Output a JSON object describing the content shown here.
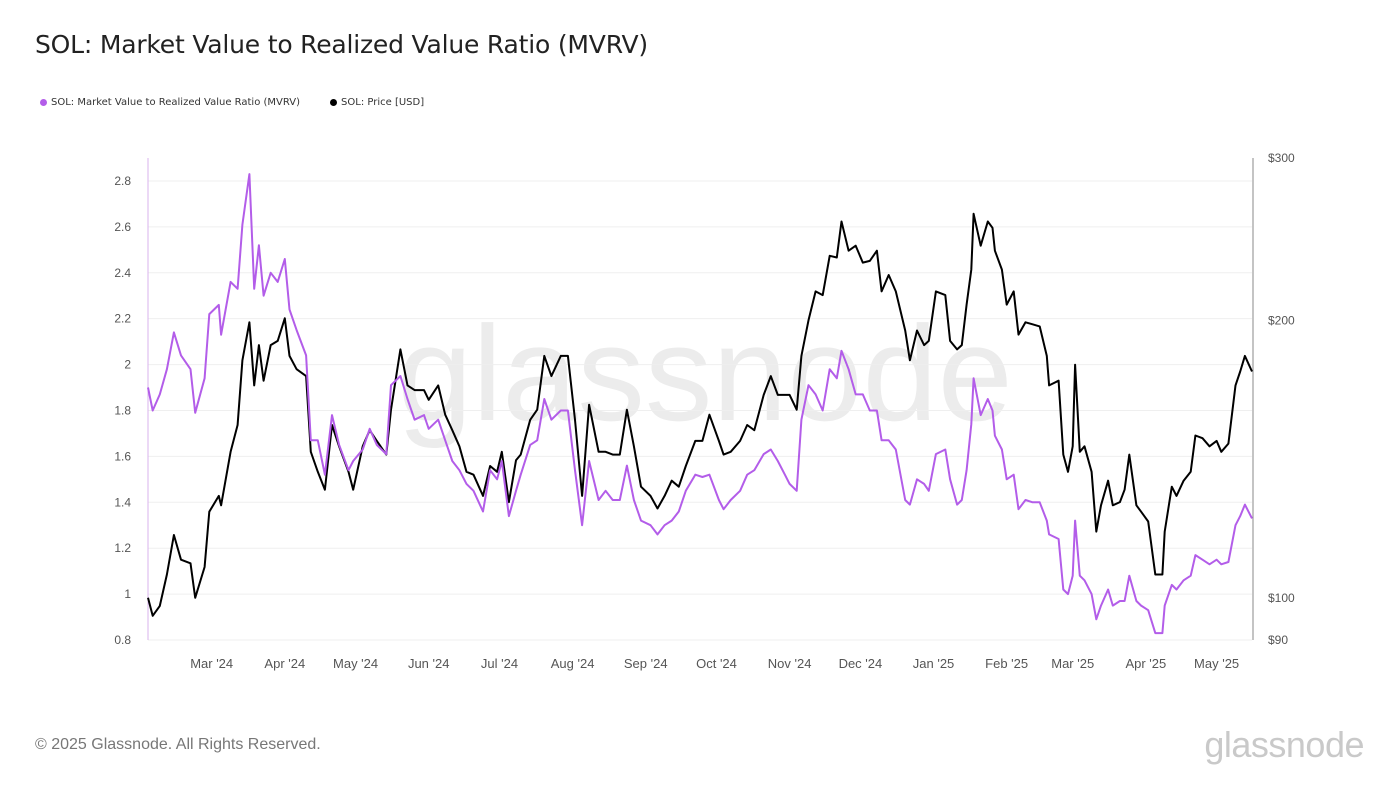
{
  "title": "SOL: Market Value to Realized Value Ratio (MVRV)",
  "footer": "© 2025 Glassnode. All Rights Reserved.",
  "logo": "glassnode",
  "watermark": "glassnode",
  "legend": [
    {
      "label": "SOL: Market Value to Realized Value Ratio (MVRV)",
      "color": "#b35de9"
    },
    {
      "label": "SOL: Price [USD]",
      "color": "#000000"
    }
  ],
  "chart_data": {
    "type": "line",
    "title": "SOL: Market Value to Realized Value Ratio (MVRV)",
    "x_range": [
      "2024-02-03",
      "2025-05-16"
    ],
    "x_ticks": [
      {
        "date": "2024-03-01",
        "label": "Mar '24"
      },
      {
        "date": "2024-04-01",
        "label": "Apr '24"
      },
      {
        "date": "2024-05-01",
        "label": "May '24"
      },
      {
        "date": "2024-06-01",
        "label": "Jun '24"
      },
      {
        "date": "2024-07-01",
        "label": "Jul '24"
      },
      {
        "date": "2024-08-01",
        "label": "Aug '24"
      },
      {
        "date": "2024-09-01",
        "label": "Sep '24"
      },
      {
        "date": "2024-10-01",
        "label": "Oct '24"
      },
      {
        "date": "2024-11-01",
        "label": "Nov '24"
      },
      {
        "date": "2024-12-01",
        "label": "Dec '24"
      },
      {
        "date": "2025-01-01",
        "label": "Jan '25"
      },
      {
        "date": "2025-02-01",
        "label": "Feb '25"
      },
      {
        "date": "2025-03-01",
        "label": "Mar '25"
      },
      {
        "date": "2025-04-01",
        "label": "Apr '25"
      },
      {
        "date": "2025-05-01",
        "label": "May '25"
      }
    ],
    "y_left": {
      "range": [
        0.8,
        2.9
      ],
      "scale": "linear",
      "ticks": [
        0.8,
        1,
        1.2,
        1.4,
        1.6,
        1.8,
        2,
        2.2,
        2.4,
        2.6,
        2.8
      ],
      "tick_labels": [
        "0.8",
        "1",
        "1.2",
        "1.4",
        "1.6",
        "1.8",
        "2",
        "2.2",
        "2.4",
        "2.6",
        "2.8"
      ]
    },
    "y_right": {
      "range": [
        90,
        300
      ],
      "scale": "log",
      "ticks": [
        90,
        100,
        200,
        300
      ],
      "tick_labels": [
        "$90",
        "$100",
        "$200",
        "$300"
      ]
    },
    "grid": true,
    "legend_position": "top-left",
    "dates": [
      "2024-02-03",
      "2024-02-05",
      "2024-02-08",
      "2024-02-11",
      "2024-02-14",
      "2024-02-17",
      "2024-02-21",
      "2024-02-23",
      "2024-02-27",
      "2024-02-29",
      "2024-03-04",
      "2024-03-05",
      "2024-03-09",
      "2024-03-12",
      "2024-03-14",
      "2024-03-17",
      "2024-03-19",
      "2024-03-21",
      "2024-03-23",
      "2024-03-26",
      "2024-03-29",
      "2024-04-01",
      "2024-04-03",
      "2024-04-06",
      "2024-04-10",
      "2024-04-12",
      "2024-04-15",
      "2024-04-18",
      "2024-04-21",
      "2024-04-24",
      "2024-04-28",
      "2024-04-30",
      "2024-05-04",
      "2024-05-07",
      "2024-05-10",
      "2024-05-14",
      "2024-05-16",
      "2024-05-20",
      "2024-05-23",
      "2024-05-26",
      "2024-05-30",
      "2024-06-01",
      "2024-06-05",
      "2024-06-08",
      "2024-06-11",
      "2024-06-14",
      "2024-06-17",
      "2024-06-20",
      "2024-06-24",
      "2024-06-27",
      "2024-06-30",
      "2024-07-02",
      "2024-07-05",
      "2024-07-08",
      "2024-07-10",
      "2024-07-14",
      "2024-07-17",
      "2024-07-20",
      "2024-07-23",
      "2024-07-27",
      "2024-07-30",
      "2024-08-02",
      "2024-08-05",
      "2024-08-08",
      "2024-08-12",
      "2024-08-15",
      "2024-08-18",
      "2024-08-21",
      "2024-08-24",
      "2024-08-27",
      "2024-08-30",
      "2024-09-03",
      "2024-09-06",
      "2024-09-09",
      "2024-09-12",
      "2024-09-15",
      "2024-09-18",
      "2024-09-22",
      "2024-09-25",
      "2024-09-28",
      "2024-10-02",
      "2024-10-04",
      "2024-10-07",
      "2024-10-11",
      "2024-10-14",
      "2024-10-17",
      "2024-10-21",
      "2024-10-24",
      "2024-10-27",
      "2024-10-30",
      "2024-11-01",
      "2024-11-04",
      "2024-11-06",
      "2024-11-09",
      "2024-11-12",
      "2024-11-15",
      "2024-11-18",
      "2024-11-21",
      "2024-11-23",
      "2024-11-26",
      "2024-11-29",
      "2024-12-02",
      "2024-12-05",
      "2024-12-08",
      "2024-12-10",
      "2024-12-13",
      "2024-12-16",
      "2024-12-20",
      "2024-12-22",
      "2024-12-25",
      "2024-12-28",
      "2024-12-30",
      "2025-01-02",
      "2025-01-06",
      "2025-01-08",
      "2025-01-11",
      "2025-01-13",
      "2025-01-15",
      "2025-01-17",
      "2025-01-18",
      "2025-01-21",
      "2025-01-24",
      "2025-01-26",
      "2025-01-27",
      "2025-01-30",
      "2025-02-01",
      "2025-02-04",
      "2025-02-06",
      "2025-02-09",
      "2025-02-12",
      "2025-02-15",
      "2025-02-18",
      "2025-02-19",
      "2025-02-23",
      "2025-02-25",
      "2025-02-27",
      "2025-03-01",
      "2025-03-02",
      "2025-03-04",
      "2025-03-06",
      "2025-03-09",
      "2025-03-11",
      "2025-03-13",
      "2025-03-16",
      "2025-03-18",
      "2025-03-21",
      "2025-03-23",
      "2025-03-25",
      "2025-03-28",
      "2025-03-30",
      "2025-04-02",
      "2025-04-05",
      "2025-04-08",
      "2025-04-09",
      "2025-04-12",
      "2025-04-14",
      "2025-04-17",
      "2025-04-20",
      "2025-04-22",
      "2025-04-25",
      "2025-04-28",
      "2025-05-01",
      "2025-05-03",
      "2025-05-06",
      "2025-05-09",
      "2025-05-11",
      "2025-05-13",
      "2025-05-16"
    ],
    "series": [
      {
        "name": "SOL: Market Value to Realized Value Ratio (MVRV)",
        "axis": "left",
        "color": "#b35de9",
        "values": [
          1.9,
          1.8,
          1.87,
          1.98,
          2.14,
          2.04,
          1.98,
          1.79,
          1.94,
          2.22,
          2.26,
          2.13,
          2.36,
          2.33,
          2.61,
          2.83,
          2.33,
          2.52,
          2.3,
          2.4,
          2.36,
          2.46,
          2.24,
          2.15,
          2.04,
          1.67,
          1.67,
          1.52,
          1.78,
          1.65,
          1.54,
          1.58,
          1.63,
          1.72,
          1.65,
          1.61,
          1.91,
          1.95,
          1.85,
          1.76,
          1.78,
          1.72,
          1.76,
          1.67,
          1.58,
          1.54,
          1.48,
          1.45,
          1.36,
          1.54,
          1.5,
          1.58,
          1.34,
          1.45,
          1.52,
          1.65,
          1.67,
          1.85,
          1.76,
          1.8,
          1.8,
          1.54,
          1.3,
          1.58,
          1.41,
          1.45,
          1.41,
          1.41,
          1.56,
          1.41,
          1.32,
          1.3,
          1.26,
          1.3,
          1.32,
          1.36,
          1.45,
          1.52,
          1.51,
          1.52,
          1.41,
          1.37,
          1.41,
          1.45,
          1.52,
          1.54,
          1.61,
          1.63,
          1.58,
          1.52,
          1.48,
          1.45,
          1.76,
          1.91,
          1.87,
          1.8,
          1.98,
          1.94,
          2.06,
          1.98,
          1.87,
          1.87,
          1.8,
          1.8,
          1.67,
          1.67,
          1.63,
          1.41,
          1.39,
          1.5,
          1.48,
          1.45,
          1.61,
          1.63,
          1.5,
          1.39,
          1.41,
          1.54,
          1.74,
          1.94,
          1.78,
          1.85,
          1.8,
          1.69,
          1.63,
          1.5,
          1.52,
          1.37,
          1.41,
          1.4,
          1.4,
          1.32,
          1.26,
          1.24,
          1.02,
          1.0,
          1.08,
          1.32,
          1.08,
          1.06,
          1.0,
          0.89,
          0.95,
          1.02,
          0.95,
          0.97,
          0.97,
          1.08,
          0.97,
          0.95,
          0.93,
          0.83,
          0.83,
          0.95,
          1.04,
          1.02,
          1.06,
          1.08,
          1.17,
          1.15,
          1.13,
          1.15,
          1.13,
          1.14,
          1.3,
          1.34,
          1.39,
          1.33
        ]
      },
      {
        "name": "SOL: Price [USD]",
        "axis": "right",
        "color": "#000000",
        "values": [
          100,
          95.6,
          98,
          106,
          117,
          110,
          109,
          100,
          108,
          124,
          129,
          126,
          144,
          154,
          181,
          199,
          170,
          188,
          172,
          188,
          190,
          201,
          183,
          177,
          174,
          144,
          137,
          131,
          154,
          146,
          137,
          131,
          146,
          152,
          148,
          143,
          160,
          186,
          170,
          168,
          168,
          164,
          170,
          158,
          152,
          146,
          137,
          136,
          129,
          139,
          137,
          144,
          127,
          141,
          143,
          156,
          160,
          183,
          174,
          183,
          183,
          156,
          129,
          162,
          144,
          144,
          143,
          143,
          160,
          146,
          132,
          129,
          125,
          129,
          134,
          132,
          139,
          148,
          148,
          158,
          148,
          143,
          144,
          148,
          154,
          152,
          166,
          174,
          166,
          166,
          166,
          160,
          183,
          200,
          215,
          213,
          235,
          234,
          256,
          238,
          241,
          231,
          232,
          238,
          215,
          224,
          215,
          195,
          181,
          195,
          188,
          190,
          215,
          213,
          190,
          186,
          188,
          208,
          227,
          261,
          241,
          256,
          252,
          238,
          227,
          208,
          215,
          193,
          199,
          198,
          197,
          183,
          170,
          172,
          143,
          137,
          146,
          179,
          144,
          146,
          137,
          118,
          126,
          134,
          126,
          127,
          131,
          143,
          126,
          124,
          121,
          106,
          106,
          118,
          132,
          129,
          134,
          137,
          150,
          149,
          146,
          148,
          144,
          147,
          170,
          176,
          183,
          176
        ]
      }
    ]
  }
}
